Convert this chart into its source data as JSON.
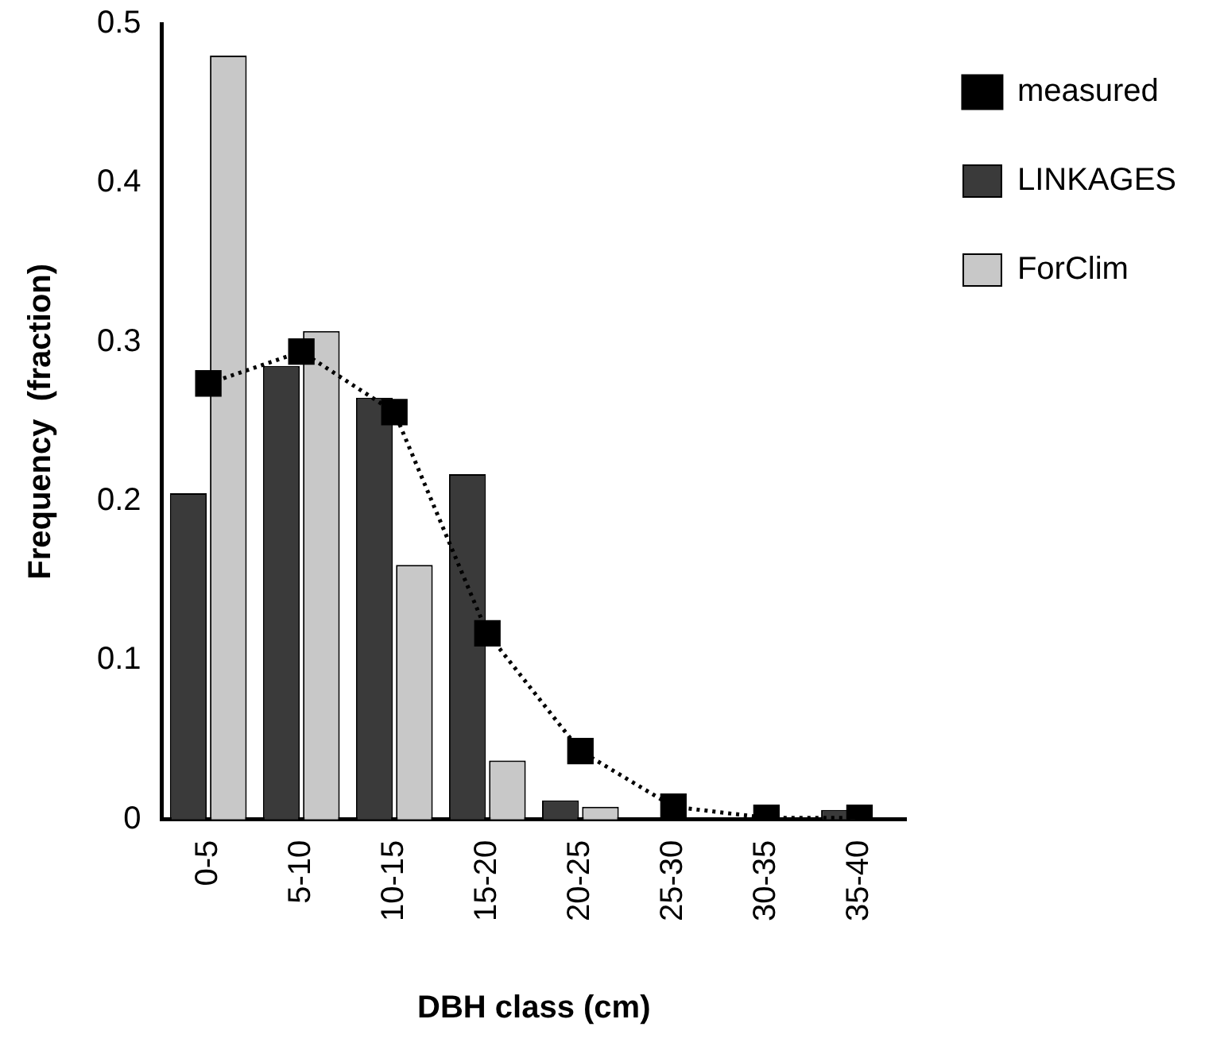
{
  "chart_data": {
    "type": "bar",
    "xlabel": "DBH class (cm)",
    "ylabel": "Frequency  (fraction)",
    "categories": [
      "0-5",
      "5-10",
      "10-15",
      "15-20",
      "20-25",
      "25-30",
      "30-35",
      "35-40"
    ],
    "series": [
      {
        "name": "measured",
        "type": "line",
        "color": "#000000",
        "marker": "square",
        "line_style": "dotted",
        "values": [
          0.274,
          0.294,
          0.256,
          0.117,
          0.043,
          0.008,
          0.001,
          0.001
        ]
      },
      {
        "name": "LINKAGES",
        "color": "#3a3a3a",
        "values": [
          0.205,
          0.285,
          0.265,
          0.217,
          0.012,
          0,
          0,
          0.006
        ]
      },
      {
        "name": "ForClim",
        "color": "#c8c8c8",
        "values": [
          0.48,
          0.307,
          0.16,
          0.037,
          0.008,
          0,
          0,
          0
        ]
      }
    ],
    "ylim": [
      0,
      0.5
    ],
    "yticks": [
      0,
      0.1,
      0.2,
      0.3,
      0.4,
      0.5
    ],
    "grid": false,
    "legend": "top right"
  }
}
